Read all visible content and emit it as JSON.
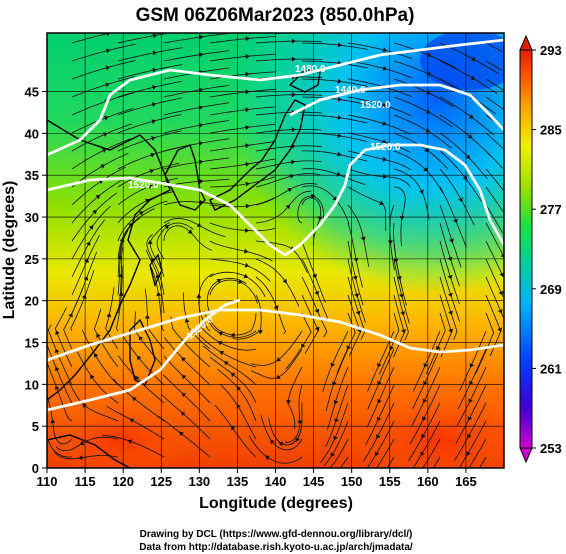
{
  "title": "GSM 06Z06Mar2023 (850.0hPa)",
  "xlabel": "Longitude (degrees)",
  "ylabel": "Latitude  (degrees)",
  "credits": [
    "Drawing by DCL (https://www.gfd-dennou.org/library/dcl/)",
    "Data from http://database.rish.kyoto-u.ac.jp/arch/jmadata/"
  ],
  "x_ticks": [
    "110",
    "115",
    "120",
    "125",
    "130",
    "135",
    "140",
    "145",
    "150",
    "155",
    "160",
    "165"
  ],
  "y_ticks": [
    "0",
    "5",
    "10",
    "15",
    "20",
    "25",
    "30",
    "35",
    "40",
    "45"
  ],
  "colorbar": {
    "ticks": [
      "253",
      "261",
      "269",
      "277",
      "285",
      "293"
    ],
    "colors": [
      "#d000d0",
      "#4000d0",
      "#0040ff",
      "#00b0ff",
      "#00d0a0",
      "#00e060",
      "#30e030",
      "#a0e000",
      "#f0f000",
      "#ffb000",
      "#ff6000",
      "#e02000"
    ]
  },
  "contour_labels": [
    "1520.0",
    "1520.0",
    "1520.0",
    "1480.0",
    "1440.0",
    "1520.0"
  ],
  "chart_data": {
    "type": "heatmap",
    "title": "GSM 06Z06Mar2023 (850.0hPa)",
    "xlabel": "Longitude (degrees)",
    "ylabel": "Latitude  (degrees)",
    "xlim": [
      110,
      170
    ],
    "ylim": [
      0,
      52
    ],
    "field": "temperature",
    "colorbar_range": [
      253,
      293
    ],
    "grid": true,
    "contour_values": [
      1440.0,
      1480.0,
      1520.0
    ],
    "overlay": "streamlines"
  }
}
